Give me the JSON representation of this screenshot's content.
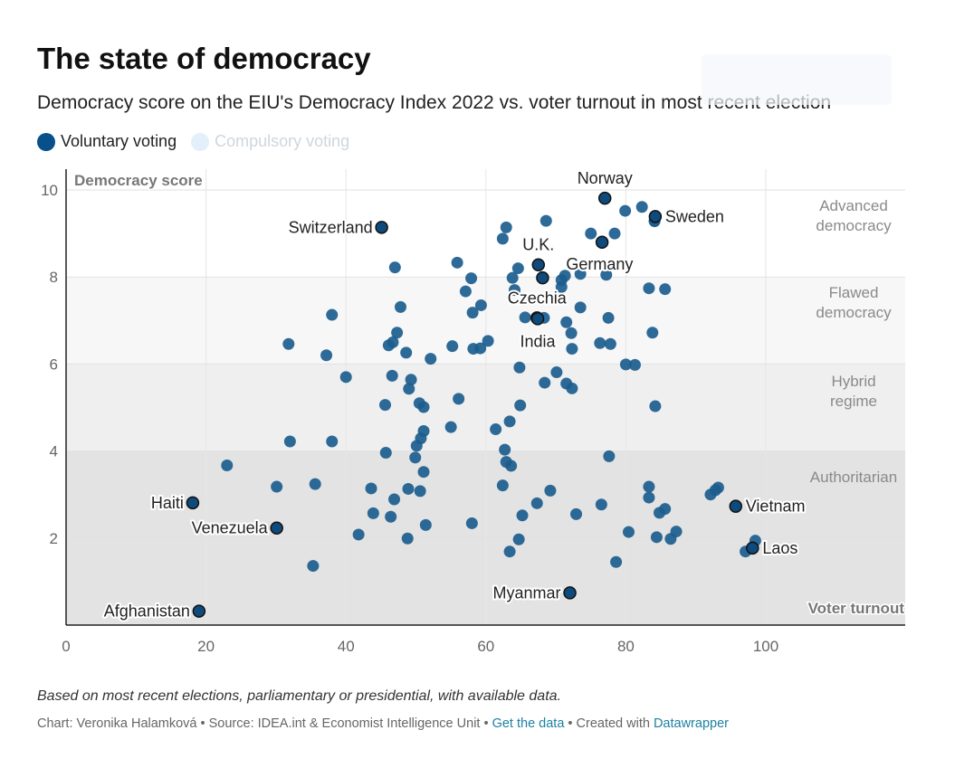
{
  "title": "The state of democracy",
  "subtitle": "Democracy score on the EIU's Democracy Index 2022 vs. voter turnout in most recent election",
  "legend": [
    {
      "label": "Voluntary voting",
      "color": "#08508c",
      "active": true
    },
    {
      "label": "Compulsory voting",
      "color": "#e3f0fb",
      "active": false
    }
  ],
  "note": "Based on most recent elections, parliamentary or presidential, with available data.",
  "footer": {
    "prefix": "Chart: Veronika Halamková • Source: IDEA.int & Economist Intelligence Unit • ",
    "get_data": "Get the data",
    "middle": " • Created with ",
    "datawrapper": "Datawrapper"
  },
  "chart_data": {
    "type": "scatter",
    "xlabel": "Voter turnout",
    "ylabel": "Democracy score",
    "xlim": [
      0,
      120
    ],
    "ylim": [
      0,
      10
    ],
    "xticks": [
      0,
      20,
      40,
      60,
      80,
      100
    ],
    "yticks": [
      2,
      4,
      6,
      8,
      10
    ],
    "grid": true,
    "bands": [
      {
        "from": 0,
        "to": 4,
        "label": [
          "Authoritarian"
        ],
        "color": "#e3e3e3"
      },
      {
        "from": 4,
        "to": 6,
        "label": [
          "Hybrid",
          "regime"
        ],
        "color": "#efefef"
      },
      {
        "from": 6,
        "to": 8,
        "label": [
          "Flawed",
          "democracy"
        ],
        "color": "#f7f7f7"
      },
      {
        "from": 8,
        "to": 10,
        "label": [
          "Advanced",
          "democracy"
        ],
        "color": "#ffffff"
      }
    ],
    "colors": {
      "point": "#1c5d8e",
      "highlight": "#0e4a7c"
    },
    "highlighted": [
      {
        "name": "Norway",
        "x": 77,
        "y": 9.81,
        "label_pos": "above"
      },
      {
        "name": "Sweden",
        "x": 84.2,
        "y": 9.39,
        "label_pos": "right"
      },
      {
        "name": "Switzerland",
        "x": 45.1,
        "y": 9.14,
        "label_pos": "left"
      },
      {
        "name": "U.K.",
        "x": 67.5,
        "y": 8.28,
        "label_pos": "above"
      },
      {
        "name": "Germany",
        "x": 76.6,
        "y": 8.8,
        "label_pos": "none"
      },
      {
        "name": "Germany",
        "x": 68.1,
        "y": 7.98,
        "label_pos": "belowright"
      },
      {
        "name": "Czechia",
        "x": 67.3,
        "y": 7.06,
        "label_pos": "above"
      },
      {
        "name": "India",
        "x": 67.4,
        "y": 7.04,
        "label_pos": "below"
      },
      {
        "name": "Vietnam",
        "x": 95.7,
        "y": 2.73,
        "label_pos": "right"
      },
      {
        "name": "Laos",
        "x": 98.1,
        "y": 1.77,
        "label_pos": "right"
      },
      {
        "name": "Haiti",
        "x": 18.1,
        "y": 2.81,
        "label_pos": "left"
      },
      {
        "name": "Venezuela",
        "x": 30.1,
        "y": 2.23,
        "label_pos": "left"
      },
      {
        "name": "Myanmar",
        "x": 72,
        "y": 0.74,
        "label_pos": "left"
      },
      {
        "name": "Afghanistan",
        "x": 19,
        "y": 0.32,
        "label_pos": "left"
      }
    ],
    "points": [
      [
        82.3,
        9.61
      ],
      [
        79.9,
        9.52
      ],
      [
        84.1,
        9.29
      ],
      [
        84.1,
        9.28
      ],
      [
        68.6,
        9.29
      ],
      [
        62.9,
        9.14
      ],
      [
        75,
        9
      ],
      [
        78.4,
        9
      ],
      [
        62.4,
        8.88
      ],
      [
        55.9,
        8.33
      ],
      [
        47,
        8.22
      ],
      [
        64.6,
        8.2
      ],
      [
        57.9,
        7.97
      ],
      [
        63.8,
        7.98
      ],
      [
        70.8,
        7.93
      ],
      [
        71.3,
        8.03
      ],
      [
        73.5,
        8.07
      ],
      [
        77.2,
        8.05
      ],
      [
        70.8,
        7.77
      ],
      [
        64.1,
        7.7
      ],
      [
        57.1,
        7.67
      ],
      [
        83.3,
        7.74
      ],
      [
        85.6,
        7.72
      ],
      [
        59.3,
        7.35
      ],
      [
        47.8,
        7.31
      ],
      [
        73.5,
        7.3
      ],
      [
        58.1,
        7.18
      ],
      [
        38,
        7.13
      ],
      [
        65.6,
        7.07
      ],
      [
        68.3,
        7.06
      ],
      [
        71.5,
        6.96
      ],
      [
        77.5,
        7.06
      ],
      [
        47.3,
        6.72
      ],
      [
        72.2,
        6.71
      ],
      [
        83.8,
        6.72
      ],
      [
        46.7,
        6.5
      ],
      [
        46.1,
        6.43
      ],
      [
        31.8,
        6.46
      ],
      [
        55.2,
        6.41
      ],
      [
        60.3,
        6.53
      ],
      [
        58.2,
        6.35
      ],
      [
        59.2,
        6.36
      ],
      [
        72.3,
        6.35
      ],
      [
        76.3,
        6.48
      ],
      [
        77.8,
        6.46
      ],
      [
        37.2,
        6.2
      ],
      [
        48.6,
        6.26
      ],
      [
        52.1,
        6.12
      ],
      [
        80,
        5.99
      ],
      [
        81.3,
        5.98
      ],
      [
        64.8,
        5.92
      ],
      [
        70.1,
        5.81
      ],
      [
        40,
        5.7
      ],
      [
        46.6,
        5.73
      ],
      [
        49.3,
        5.64
      ],
      [
        49,
        5.43
      ],
      [
        68.4,
        5.57
      ],
      [
        71.5,
        5.55
      ],
      [
        72.3,
        5.44
      ],
      [
        56.1,
        5.2
      ],
      [
        50.5,
        5.1
      ],
      [
        51.1,
        5.01
      ],
      [
        45.6,
        5.06
      ],
      [
        64.9,
        5.05
      ],
      [
        84.2,
        5.03
      ],
      [
        63.4,
        4.68
      ],
      [
        61.4,
        4.5
      ],
      [
        55,
        4.55
      ],
      [
        51.1,
        4.46
      ],
      [
        50.7,
        4.29
      ],
      [
        50.1,
        4.12
      ],
      [
        32,
        4.22
      ],
      [
        38,
        4.22
      ],
      [
        62.7,
        4.03
      ],
      [
        45.7,
        3.96
      ],
      [
        77.6,
        3.88
      ],
      [
        49.9,
        3.85
      ],
      [
        62.9,
        3.75
      ],
      [
        63.6,
        3.66
      ],
      [
        23,
        3.67
      ],
      [
        51.1,
        3.52
      ],
      [
        30.1,
        3.18
      ],
      [
        35.6,
        3.24
      ],
      [
        43.6,
        3.14
      ],
      [
        48.9,
        3.13
      ],
      [
        50.6,
        3.08
      ],
      [
        62.4,
        3.21
      ],
      [
        69.2,
        3.09
      ],
      [
        83.3,
        3.18
      ],
      [
        93.2,
        3.16
      ],
      [
        92.8,
        3.1
      ],
      [
        92.1,
        3
      ],
      [
        83.3,
        2.93
      ],
      [
        46.9,
        2.89
      ],
      [
        67.3,
        2.8
      ],
      [
        76.5,
        2.77
      ],
      [
        85.6,
        2.67
      ],
      [
        84.8,
        2.58
      ],
      [
        43.9,
        2.57
      ],
      [
        46.4,
        2.49
      ],
      [
        65.2,
        2.52
      ],
      [
        72.9,
        2.55
      ],
      [
        51.4,
        2.3
      ],
      [
        58,
        2.34
      ],
      [
        41.8,
        2.08
      ],
      [
        80.4,
        2.14
      ],
      [
        87.2,
        2.15
      ],
      [
        84.4,
        2.02
      ],
      [
        86.4,
        1.98
      ],
      [
        48.8,
        1.99
      ],
      [
        64.7,
        1.97
      ],
      [
        98.5,
        1.94
      ],
      [
        97.1,
        1.69
      ],
      [
        63.4,
        1.69
      ],
      [
        35.3,
        1.36
      ],
      [
        78.6,
        1.45
      ]
    ]
  }
}
